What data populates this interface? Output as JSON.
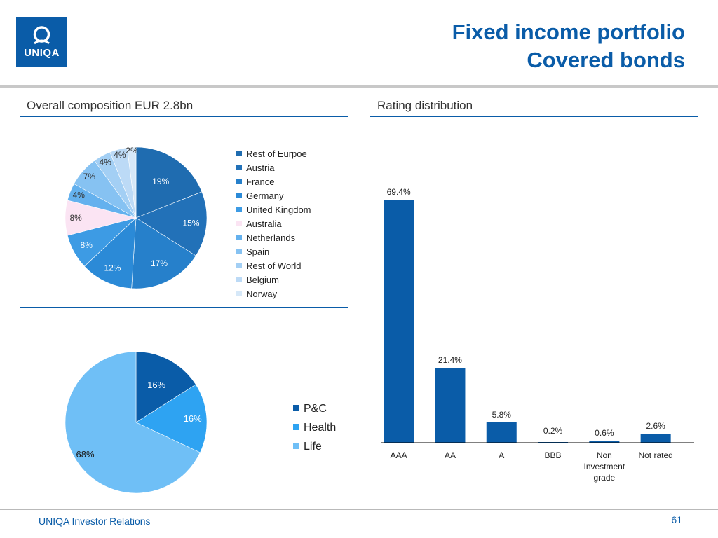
{
  "header": {
    "logo_text": "UNIQA",
    "title_line1": "Fixed income portfolio",
    "title_line2": "Covered bonds"
  },
  "left_section": {
    "title": "Overall composition EUR 2.8bn"
  },
  "right_section": {
    "title": "Rating distribution"
  },
  "footer": {
    "left": "UNIQA Investor Relations",
    "page_number": "61"
  },
  "colors": {
    "brand": "#0a5ca8",
    "bar": "#0a5ca8"
  },
  "chart_data": [
    {
      "type": "pie",
      "title": "Overall composition EUR 2.8bn",
      "legend_position": "right",
      "slices": [
        {
          "label": "Rest of Eurpoe",
          "value": 19,
          "text": "19%",
          "color": "#1f6cb0"
        },
        {
          "label": "Austria",
          "value": 15,
          "text": "15%",
          "color": "#2271b8"
        },
        {
          "label": "France",
          "value": 17,
          "text": "17%",
          "color": "#2680cb"
        },
        {
          "label": "Germany",
          "value": 12,
          "text": "12%",
          "color": "#2b8ad7"
        },
        {
          "label": "United Kingdom",
          "value": 8,
          "text": "8%",
          "color": "#3d9be4"
        },
        {
          "label": "Australia",
          "value": 8,
          "text": "8%",
          "color": "#fbe4f3"
        },
        {
          "label": "Netherlands",
          "value": 4,
          "text": "4%",
          "color": "#64b1ee"
        },
        {
          "label": "Spain",
          "value": 7,
          "text": "7%",
          "color": "#86c2f2"
        },
        {
          "label": "Rest of World",
          "value": 4,
          "text": "4%",
          "color": "#a3cff4"
        },
        {
          "label": "Belgium",
          "value": 4,
          "text": "4%",
          "color": "#bcdaf6"
        },
        {
          "label": "Norway",
          "value": 2,
          "text": "2%",
          "color": "#d6e8f8"
        }
      ]
    },
    {
      "type": "pie",
      "title": "",
      "legend_position": "right",
      "slices": [
        {
          "label": "P&C",
          "value": 16,
          "text": "16%",
          "color": "#0a5ca8"
        },
        {
          "label": "Health",
          "value": 16,
          "text": "16%",
          "color": "#2ea3f2"
        },
        {
          "label": "Life",
          "value": 68,
          "text": "68%",
          "color": "#6fbff6"
        }
      ]
    },
    {
      "type": "bar",
      "title": "Rating distribution",
      "categories": [
        "AAA",
        "AA",
        "A",
        "BBB",
        "Non Investment grade",
        "Not rated"
      ],
      "category_lines": [
        [
          "AAA"
        ],
        [
          "AA"
        ],
        [
          "A"
        ],
        [
          "BBB"
        ],
        [
          "Non",
          "Investment",
          "grade"
        ],
        [
          "Not rated"
        ]
      ],
      "values": [
        69.4,
        21.4,
        5.8,
        0.2,
        0.6,
        2.6
      ],
      "value_labels": [
        "69.4%",
        "21.4%",
        "5.8%",
        "0.2%",
        "0.6%",
        "2.6%"
      ],
      "ylim": [
        0,
        80
      ],
      "ylabel": "",
      "xlabel": ""
    }
  ]
}
